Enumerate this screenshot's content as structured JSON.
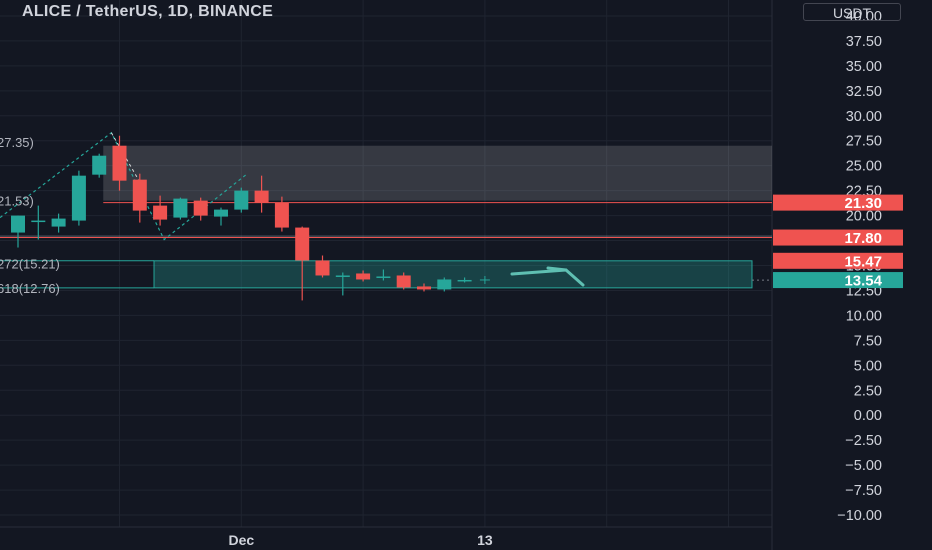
{
  "header": {
    "title": "ALICE / TetherUS, 1D, BINANCE",
    "currency": "USDT"
  },
  "colors": {
    "background": "#131722",
    "up": "#26a69a",
    "down": "#ef5350",
    "grid": "#1f2430",
    "axis_text": "#d1d4dc",
    "zone_fill": "#26a69a",
    "supply_zone": "#ffffff"
  },
  "chart_data": {
    "type": "candlestick",
    "title": "ALICE / TetherUS, 1D, BINANCE",
    "xlabel": "",
    "ylabel": "",
    "y_axis_ticks": [
      40,
      37.5,
      35,
      32.5,
      30,
      27.5,
      25,
      22.5,
      20,
      17.5,
      15,
      12.5,
      10,
      7.5,
      5,
      2.5,
      0,
      -2.5,
      -5,
      -7.5,
      -10
    ],
    "y_tick_labels": [
      "40.00",
      "37.50",
      "35.00",
      "32.50",
      "30.00",
      "27.50",
      "25.00",
      "22.50",
      "20.00",
      "17.50",
      "15.00",
      "12.50",
      "10.00",
      "7.50",
      "5.00",
      "2.50",
      "0.00",
      "−2.50",
      "−5.00",
      "−7.50",
      "−10.00"
    ],
    "ylim": [
      -11.2,
      41.6
    ],
    "x_axis_labels": [
      {
        "label": "Dec",
        "index": 11
      },
      {
        "label": "13",
        "index": 23
      }
    ],
    "candles": [
      {
        "o": 18.3,
        "h": 20.0,
        "l": 16.8,
        "c": 20.0
      },
      {
        "o": 19.5,
        "h": 21.0,
        "l": 17.6,
        "c": 19.5
      },
      {
        "o": 18.9,
        "h": 20.2,
        "l": 18.3,
        "c": 19.7
      },
      {
        "o": 19.5,
        "h": 24.5,
        "l": 19.0,
        "c": 24.0
      },
      {
        "o": 24.1,
        "h": 26.2,
        "l": 23.8,
        "c": 26.0
      },
      {
        "o": 27.0,
        "h": 28.0,
        "l": 22.5,
        "c": 23.5
      },
      {
        "o": 23.6,
        "h": 24.2,
        "l": 19.3,
        "c": 20.5
      },
      {
        "o": 21.0,
        "h": 22.0,
        "l": 19.0,
        "c": 19.6
      },
      {
        "o": 19.8,
        "h": 21.8,
        "l": 19.6,
        "c": 21.7
      },
      {
        "o": 21.5,
        "h": 21.8,
        "l": 19.5,
        "c": 20.0
      },
      {
        "o": 19.9,
        "h": 20.8,
        "l": 19.0,
        "c": 20.6
      },
      {
        "o": 20.6,
        "h": 22.8,
        "l": 20.3,
        "c": 22.5
      },
      {
        "o": 22.5,
        "h": 24.0,
        "l": 20.3,
        "c": 21.3
      },
      {
        "o": 21.3,
        "h": 21.9,
        "l": 18.4,
        "c": 18.8
      },
      {
        "o": 18.8,
        "h": 18.9,
        "l": 11.5,
        "c": 15.5
      },
      {
        "o": 15.5,
        "h": 16.0,
        "l": 13.8,
        "c": 14.0
      },
      {
        "o": 13.9,
        "h": 14.3,
        "l": 12.0,
        "c": 14.0
      },
      {
        "o": 14.2,
        "h": 14.5,
        "l": 13.4,
        "c": 13.6
      },
      {
        "o": 13.8,
        "h": 14.6,
        "l": 13.5,
        "c": 13.9
      },
      {
        "o": 14.0,
        "h": 14.3,
        "l": 12.6,
        "c": 12.8
      },
      {
        "o": 12.9,
        "h": 13.2,
        "l": 12.4,
        "c": 12.6
      },
      {
        "o": 12.6,
        "h": 13.8,
        "l": 12.4,
        "c": 13.6
      },
      {
        "o": 13.5,
        "h": 13.8,
        "l": 13.3,
        "c": 13.55
      }
    ],
    "horizontal_levels": [
      {
        "value": 21.3,
        "label": "21.30",
        "color": "#ef5350"
      },
      {
        "value": 17.8,
        "label": "17.80",
        "color": "#ef5350"
      },
      {
        "value": 15.47,
        "label": "15.47",
        "color": "#ef5350"
      },
      {
        "value": 13.54,
        "label": "13.54",
        "color": "#26a69a"
      }
    ],
    "supply_zone": {
      "top": 27.0,
      "bottom": 21.5
    },
    "target_zone": {
      "top": 15.47,
      "bottom": 12.76
    },
    "fib_labels": [
      {
        "text": "27.35)",
        "value": 27.35
      },
      {
        "text": "21.53)",
        "value": 21.53
      },
      {
        "text": "272(15.21)",
        "value": 15.21
      },
      {
        "text": "618(12.76)",
        "value": 12.76
      }
    ],
    "horizontal_lines": [
      17.95
    ],
    "grid": true
  }
}
